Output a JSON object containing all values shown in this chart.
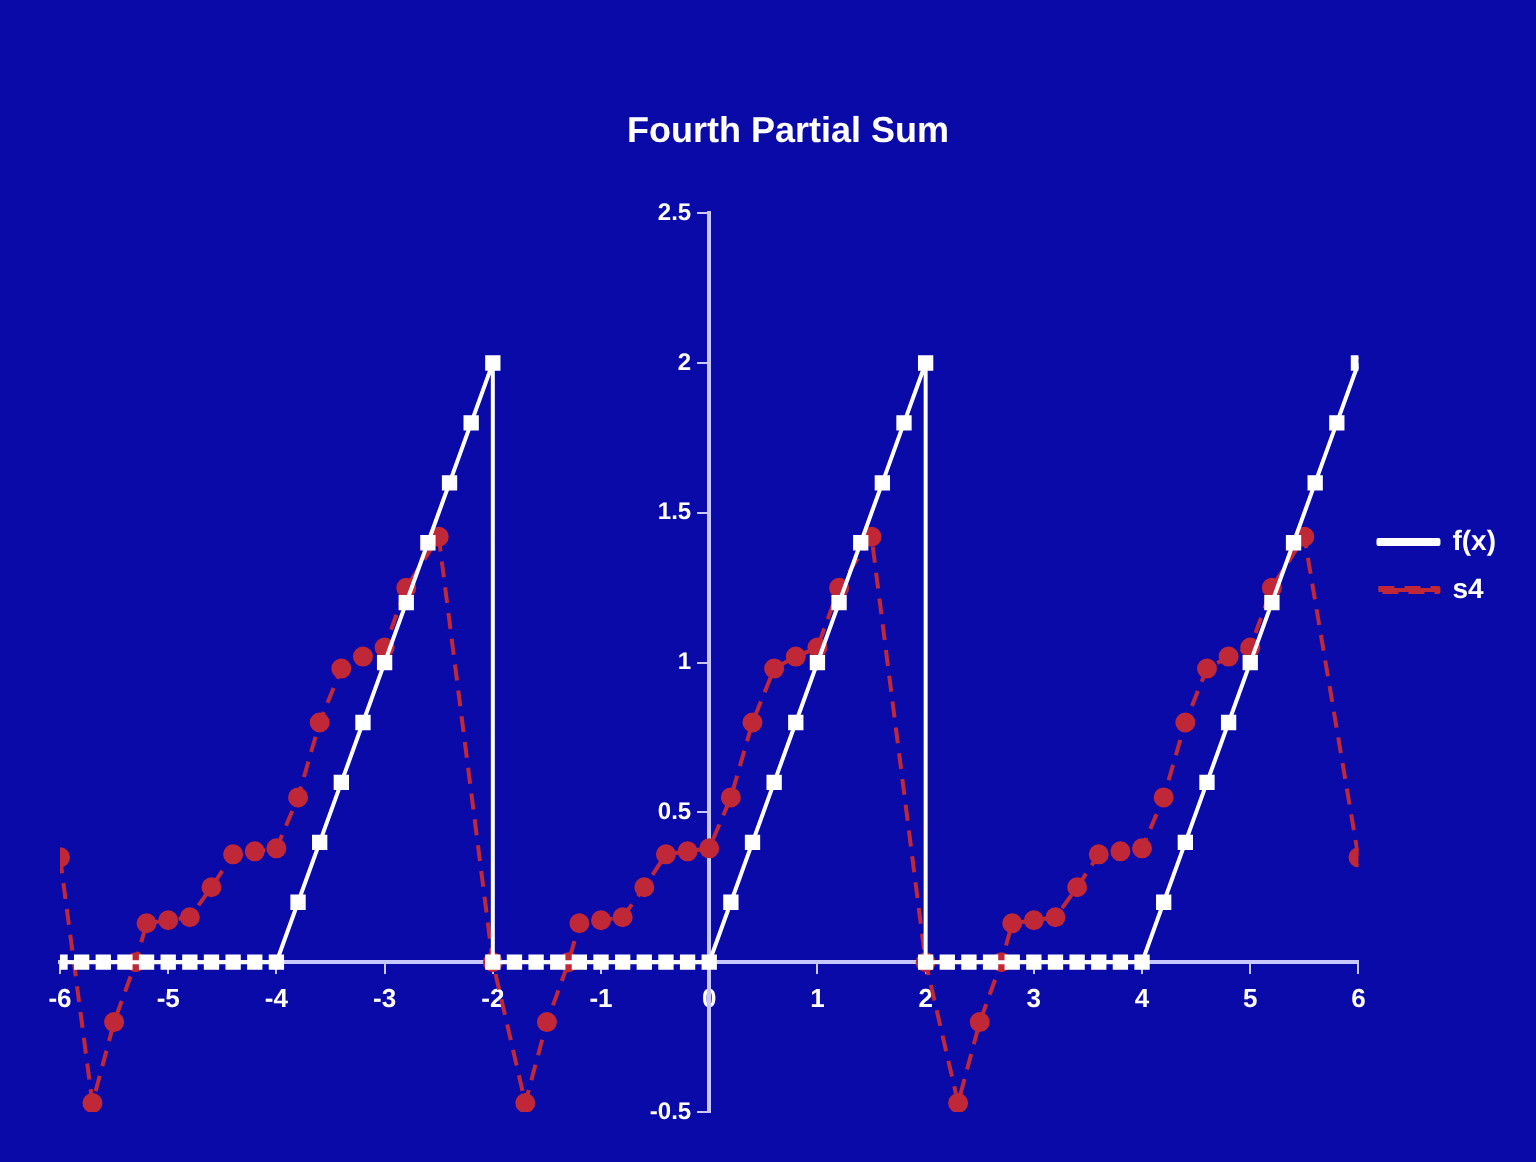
{
  "chart_data": {
    "type": "line",
    "title": "Fourth Partial Sum",
    "xlim": [
      -6,
      6
    ],
    "xticks": [
      -6,
      -5,
      -4,
      -3,
      -2,
      -1,
      0,
      1,
      2,
      3,
      4,
      5,
      6
    ],
    "ylim": [
      -0.5,
      2.5
    ],
    "yticks": [
      -0.5,
      0.5,
      1,
      1.5,
      2,
      2.5
    ],
    "grid": false,
    "legend": "right",
    "series": [
      {
        "name": "f(x)",
        "color": "#ffffff",
        "marker": "square",
        "line_style": "solid",
        "x": [
          -6,
          -5.8,
          -5.6,
          -5.4,
          -5.2,
          -5,
          -4.8,
          -4.6,
          -4.4,
          -4.2,
          -4,
          -3.8,
          -3.6,
          -3.4,
          -3.2,
          -3,
          -2.8,
          -2.6,
          -2.4,
          -2.2,
          -2,
          -2,
          -1.8,
          -1.6,
          -1.4,
          -1.2,
          -1,
          -0.8,
          -0.6,
          -0.4,
          -0.2,
          0,
          0.2,
          0.4,
          0.6,
          0.8,
          1,
          1.2,
          1.4,
          1.6,
          1.8,
          2,
          2,
          2.2,
          2.4,
          2.6,
          2.8,
          3,
          3.2,
          3.4,
          3.6,
          3.8,
          4,
          4.2,
          4.4,
          4.6,
          4.8,
          5,
          5.2,
          5.4,
          5.6,
          5.8,
          6
        ],
        "values": [
          0,
          0,
          0,
          0,
          0,
          0,
          0,
          0,
          0,
          0,
          0,
          0.2,
          0.4,
          0.6,
          0.8,
          1,
          1.2,
          1.4,
          1.6,
          1.8,
          2,
          0,
          0,
          0,
          0,
          0,
          0,
          0,
          0,
          0,
          0,
          0,
          0.2,
          0.4,
          0.6,
          0.8,
          1,
          1.2,
          1.4,
          1.6,
          1.8,
          2,
          0,
          0,
          0,
          0,
          0,
          0,
          0,
          0,
          0,
          0,
          0,
          0.2,
          0.4,
          0.6,
          0.8,
          1,
          1.2,
          1.4,
          1.6,
          1.8,
          2
        ]
      },
      {
        "name": "s4",
        "color": "#c02838",
        "marker": "circle",
        "line_style": "dashed",
        "x": [
          -6,
          -5.7,
          -5.5,
          -5.3,
          -5.2,
          -5,
          -4.8,
          -4.6,
          -4.4,
          -4.2,
          -4,
          -3.8,
          -3.6,
          -3.4,
          -3.2,
          -3,
          -2.8,
          -2.5,
          -2,
          -1.7,
          -1.5,
          -1.3,
          -1.2,
          -1,
          -0.8,
          -0.6,
          -0.4,
          -0.2,
          0,
          0.2,
          0.4,
          0.6,
          0.8,
          1,
          1.2,
          1.5,
          2,
          2.3,
          2.5,
          2.7,
          2.8,
          3,
          3.2,
          3.4,
          3.6,
          3.8,
          4,
          4.2,
          4.4,
          4.6,
          4.8,
          5,
          5.2,
          5.5,
          6
        ],
        "values": [
          0.35,
          -0.47,
          -0.2,
          0,
          0.13,
          0.14,
          0.15,
          0.25,
          0.36,
          0.37,
          0.38,
          0.55,
          0.8,
          0.98,
          1.02,
          1.05,
          1.25,
          1.42,
          0,
          -0.47,
          -0.2,
          0,
          0.13,
          0.14,
          0.15,
          0.25,
          0.36,
          0.37,
          0.38,
          0.55,
          0.8,
          0.98,
          1.02,
          1.05,
          1.25,
          1.42,
          0,
          -0.47,
          -0.2,
          0,
          0.13,
          0.14,
          0.15,
          0.25,
          0.36,
          0.37,
          0.38,
          0.55,
          0.8,
          0.98,
          1.02,
          1.05,
          1.25,
          1.42,
          0.35
        ]
      }
    ]
  }
}
